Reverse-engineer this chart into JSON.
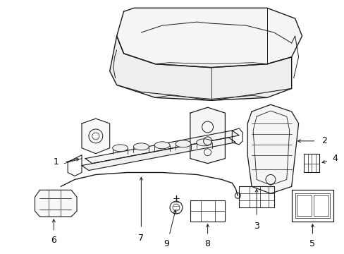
{
  "background_color": "#ffffff",
  "line_color": "#1a1a1a",
  "figsize": [
    4.89,
    3.6
  ],
  "dpi": 100,
  "seat_color": "#e8e8e8",
  "parts_color": "#f0f0f0"
}
